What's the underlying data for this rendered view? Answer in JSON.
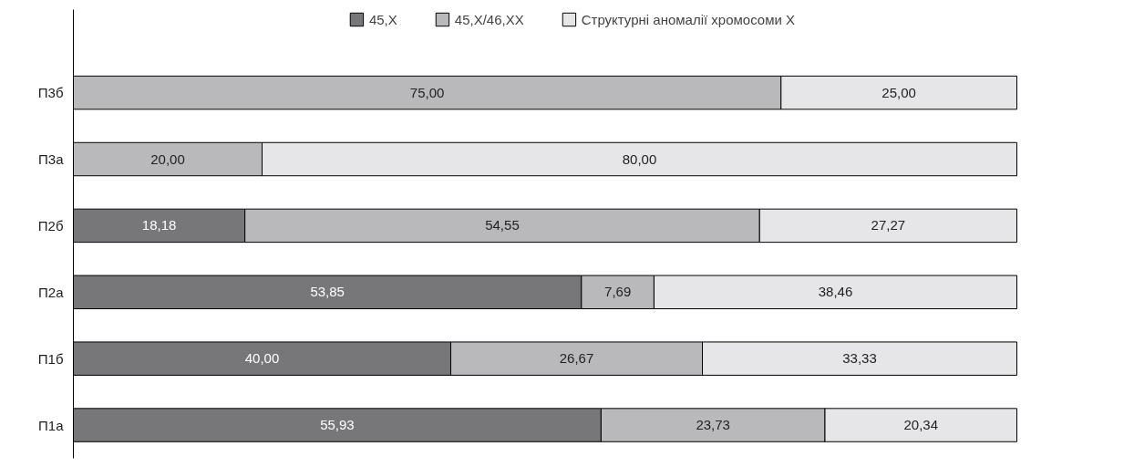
{
  "chart_data": {
    "type": "bar",
    "orientation": "horizontal",
    "stacked": true,
    "legend": "top",
    "grid": false,
    "categories": [
      "П3б",
      "П3а",
      "П2б",
      "П2а",
      "П1б",
      "П1а"
    ],
    "series": [
      {
        "name": "45,X",
        "color": "#77777a",
        "values": [
          null,
          null,
          18.18,
          53.85,
          40.0,
          55.93
        ],
        "value_labels": [
          null,
          null,
          "18,18",
          "53,85",
          "40,00",
          "55,93"
        ]
      },
      {
        "name": "45,X/46,XX",
        "color": "#b9b9bc",
        "values": [
          75.0,
          20.0,
          54.55,
          7.69,
          26.67,
          23.73
        ],
        "value_labels": [
          "75,00",
          "20,00",
          "54,55",
          "7,69",
          "26,67",
          "23,73"
        ]
      },
      {
        "name": "Структурні аномалії хромосоми X",
        "color": "#e6e6e8",
        "values": [
          25.0,
          80.0,
          27.27,
          38.46,
          33.33,
          20.34
        ],
        "value_labels": [
          "25,00",
          "80,00",
          "27,27",
          "38,46",
          "33,33",
          "20,34"
        ]
      }
    ]
  }
}
